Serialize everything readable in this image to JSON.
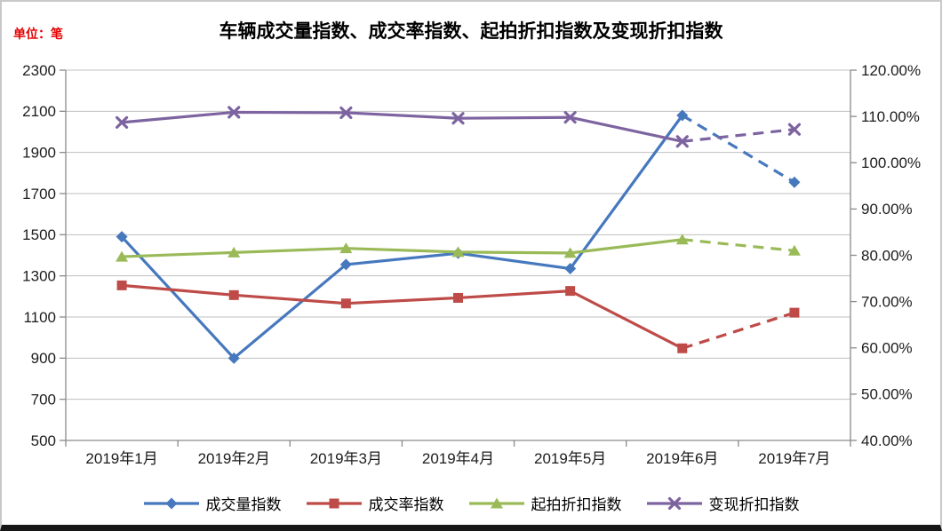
{
  "chart_data": {
    "type": "line",
    "title": "车辆成交量指数、成交率指数、起拍折扣指数及变现折扣指数",
    "unit": "单位：笔",
    "categories": [
      "2019年1月",
      "2019年2月",
      "2019年3月",
      "2019年4月",
      "2019年5月",
      "2019年6月",
      "2019年7月"
    ],
    "left_axis": {
      "min": 500,
      "max": 2300,
      "step": 200,
      "ticks": [
        "2300",
        "2100",
        "1900",
        "1700",
        "1500",
        "1300",
        "1100",
        "900",
        "700",
        "500"
      ]
    },
    "right_axis": {
      "min": 40,
      "max": 120,
      "step": 10,
      "ticks": [
        "120.00%",
        "110.00%",
        "100.00%",
        "90.00%",
        "80.00%",
        "70.00%",
        "60.00%",
        "50.00%",
        "40.00%"
      ]
    },
    "grid": true,
    "legend_position": "bottom",
    "dash_start_index": 5,
    "series": [
      {
        "name": "成交量指数",
        "axis": "left",
        "marker": "diamond",
        "color": "#4678bd",
        "values": [
          1490,
          900,
          1355,
          1410,
          1335,
          2080,
          1755
        ]
      },
      {
        "name": "成交率指数",
        "axis": "right",
        "marker": "square",
        "color": "#be4b48",
        "values": [
          73.5,
          71.4,
          69.6,
          70.8,
          72.3,
          59.9,
          67.6
        ]
      },
      {
        "name": "起拍折扣指数",
        "axis": "right",
        "marker": "triangle",
        "color": "#9aba58",
        "values": [
          79.7,
          80.6,
          81.5,
          80.7,
          80.5,
          83.4,
          81.0
        ]
      },
      {
        "name": "变现折扣指数",
        "axis": "right",
        "marker": "x",
        "color": "#7d64a0",
        "values": [
          108.7,
          110.9,
          110.8,
          109.6,
          109.8,
          104.6,
          107.2
        ]
      }
    ],
    "colors": {
      "gridline": "#bfbfbf",
      "axis_line": "#8a8a8a",
      "tick_text": "#1c1c1c",
      "title_text": "#000000",
      "unit_text": "#e60000"
    }
  }
}
